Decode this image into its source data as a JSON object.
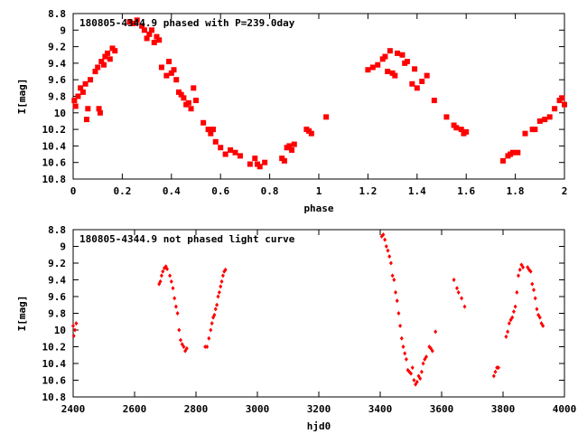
{
  "chart_data": [
    {
      "type": "scatter",
      "title": "180805-4344.9 phased with P=239.0day",
      "xlabel": "phase",
      "ylabel": "I[mag]",
      "xlim": [
        0,
        2
      ],
      "ylim": [
        10.8,
        8.8
      ],
      "y_inverted": true,
      "grid": false,
      "legend": "none",
      "marker": "square",
      "color": "#ff0000",
      "x_ticks": [
        "0",
        "0.2",
        "0.4",
        "0.6",
        "0.8",
        "1",
        "1.2",
        "1.4",
        "1.6",
        "1.8",
        "2"
      ],
      "x_tick_values": [
        0,
        0.2,
        0.4,
        0.6,
        0.8,
        1.0,
        1.2,
        1.4,
        1.6,
        1.8,
        2.0
      ],
      "y_ticks": [
        "8.8",
        "9",
        "9.2",
        "9.4",
        "9.6",
        "9.8",
        "10",
        "10.2",
        "10.4",
        "10.6",
        "10.8"
      ],
      "y_tick_values": [
        8.8,
        9.0,
        9.2,
        9.4,
        9.6,
        9.8,
        10.0,
        10.2,
        10.4,
        10.6,
        10.8
      ],
      "points": [
        [
          0.005,
          9.85
        ],
        [
          0.01,
          9.92
        ],
        [
          0.02,
          9.8
        ],
        [
          0.03,
          9.7
        ],
        [
          0.04,
          9.75
        ],
        [
          0.05,
          9.65
        ],
        [
          0.055,
          10.08
        ],
        [
          0.06,
          9.95
        ],
        [
          0.07,
          9.6
        ],
        [
          0.09,
          9.5
        ],
        [
          0.1,
          9.45
        ],
        [
          0.105,
          9.95
        ],
        [
          0.11,
          10.0
        ],
        [
          0.115,
          9.38
        ],
        [
          0.125,
          9.42
        ],
        [
          0.13,
          9.32
        ],
        [
          0.14,
          9.28
        ],
        [
          0.15,
          9.35
        ],
        [
          0.16,
          9.22
        ],
        [
          0.17,
          9.25
        ],
        [
          0.23,
          8.9
        ],
        [
          0.245,
          8.92
        ],
        [
          0.26,
          8.88
        ],
        [
          0.28,
          8.95
        ],
        [
          0.29,
          9.0
        ],
        [
          0.3,
          9.1
        ],
        [
          0.31,
          9.05
        ],
        [
          0.32,
          9.0
        ],
        [
          0.33,
          9.15
        ],
        [
          0.34,
          9.08
        ],
        [
          0.35,
          9.12
        ],
        [
          0.36,
          9.45
        ],
        [
          0.38,
          9.55
        ],
        [
          0.39,
          9.38
        ],
        [
          0.4,
          9.52
        ],
        [
          0.41,
          9.48
        ],
        [
          0.42,
          9.6
        ],
        [
          0.43,
          9.75
        ],
        [
          0.44,
          9.78
        ],
        [
          0.45,
          9.82
        ],
        [
          0.46,
          9.9
        ],
        [
          0.47,
          9.88
        ],
        [
          0.48,
          9.95
        ],
        [
          0.49,
          9.7
        ],
        [
          0.5,
          9.85
        ],
        [
          0.53,
          10.12
        ],
        [
          0.55,
          10.2
        ],
        [
          0.56,
          10.25
        ],
        [
          0.57,
          10.2
        ],
        [
          0.58,
          10.35
        ],
        [
          0.6,
          10.42
        ],
        [
          0.62,
          10.5
        ],
        [
          0.64,
          10.45
        ],
        [
          0.66,
          10.48
        ],
        [
          0.68,
          10.52
        ],
        [
          0.72,
          10.62
        ],
        [
          0.74,
          10.55
        ],
        [
          0.75,
          10.62
        ],
        [
          0.76,
          10.65
        ],
        [
          0.78,
          10.6
        ],
        [
          0.85,
          10.55
        ],
        [
          0.86,
          10.58
        ],
        [
          0.87,
          10.42
        ],
        [
          0.88,
          10.4
        ],
        [
          0.89,
          10.45
        ],
        [
          0.9,
          10.38
        ],
        [
          0.95,
          10.2
        ],
        [
          0.96,
          10.22
        ],
        [
          0.97,
          10.25
        ],
        [
          1.03,
          10.05
        ],
        [
          1.2,
          9.48
        ],
        [
          1.22,
          9.45
        ],
        [
          1.24,
          9.42
        ],
        [
          1.26,
          9.35
        ],
        [
          1.27,
          9.32
        ],
        [
          1.28,
          9.5
        ],
        [
          1.29,
          9.25
        ],
        [
          1.3,
          9.52
        ],
        [
          1.31,
          9.55
        ],
        [
          1.32,
          9.28
        ],
        [
          1.34,
          9.3
        ],
        [
          1.35,
          9.4
        ],
        [
          1.36,
          9.38
        ],
        [
          1.38,
          9.65
        ],
        [
          1.39,
          9.47
        ],
        [
          1.4,
          9.7
        ],
        [
          1.42,
          9.62
        ],
        [
          1.44,
          9.55
        ],
        [
          1.47,
          9.85
        ],
        [
          1.52,
          10.05
        ],
        [
          1.55,
          10.15
        ],
        [
          1.56,
          10.18
        ],
        [
          1.58,
          10.2
        ],
        [
          1.59,
          10.25
        ],
        [
          1.6,
          10.23
        ],
        [
          1.75,
          10.58
        ],
        [
          1.77,
          10.52
        ],
        [
          1.78,
          10.5
        ],
        [
          1.79,
          10.48
        ],
        [
          1.81,
          10.48
        ],
        [
          1.84,
          10.25
        ],
        [
          1.87,
          10.2
        ],
        [
          1.88,
          10.2
        ],
        [
          1.9,
          10.1
        ],
        [
          1.92,
          10.08
        ],
        [
          1.94,
          10.05
        ],
        [
          1.96,
          9.95
        ],
        [
          1.98,
          9.85
        ],
        [
          1.99,
          9.82
        ],
        [
          2.0,
          9.9
        ]
      ]
    },
    {
      "type": "scatter",
      "title": "180805-4344.9 not phased light curve",
      "xlabel": "hjd0",
      "ylabel": "I[mag]",
      "xlim": [
        2400,
        4000
      ],
      "ylim": [
        10.8,
        8.8
      ],
      "y_inverted": true,
      "grid": false,
      "legend": "none",
      "marker": "diamond",
      "color": "#ff0000",
      "x_ticks": [
        "2400",
        "2600",
        "2800",
        "3000",
        "3200",
        "3400",
        "3600",
        "3800",
        "4000"
      ],
      "x_tick_values": [
        2400,
        2600,
        2800,
        3000,
        3200,
        3400,
        3600,
        3800,
        4000
      ],
      "y_ticks": [
        "8.8",
        "9",
        "9.2",
        "9.4",
        "9.6",
        "9.8",
        "10",
        "10.2",
        "10.4",
        "10.6",
        "10.8"
      ],
      "y_tick_values": [
        8.8,
        9.0,
        9.2,
        9.4,
        9.6,
        9.8,
        10.0,
        10.2,
        10.4,
        10.6,
        10.8
      ],
      "points": [
        [
          2400,
          9.95
        ],
        [
          2402,
          10.07
        ],
        [
          2406,
          10.0
        ],
        [
          2410,
          9.92
        ],
        [
          2680,
          9.45
        ],
        [
          2684,
          9.42
        ],
        [
          2688,
          9.35
        ],
        [
          2692,
          9.3
        ],
        [
          2697,
          9.26
        ],
        [
          2702,
          9.24
        ],
        [
          2706,
          9.27
        ],
        [
          2715,
          9.35
        ],
        [
          2720,
          9.42
        ],
        [
          2725,
          9.5
        ],
        [
          2730,
          9.62
        ],
        [
          2735,
          9.72
        ],
        [
          2740,
          9.8
        ],
        [
          2745,
          10.0
        ],
        [
          2750,
          10.12
        ],
        [
          2755,
          10.17
        ],
        [
          2760,
          10.2
        ],
        [
          2765,
          10.25
        ],
        [
          2770,
          10.22
        ],
        [
          2830,
          10.2
        ],
        [
          2836,
          10.2
        ],
        [
          2842,
          10.1
        ],
        [
          2848,
          10.0
        ],
        [
          2852,
          9.92
        ],
        [
          2856,
          9.85
        ],
        [
          2860,
          9.82
        ],
        [
          2864,
          9.75
        ],
        [
          2868,
          9.7
        ],
        [
          2872,
          9.6
        ],
        [
          2876,
          9.55
        ],
        [
          2880,
          9.48
        ],
        [
          2884,
          9.42
        ],
        [
          2888,
          9.35
        ],
        [
          2892,
          9.3
        ],
        [
          2896,
          9.28
        ],
        [
          3405,
          8.88
        ],
        [
          3410,
          8.86
        ],
        [
          3415,
          8.92
        ],
        [
          3420,
          9.0
        ],
        [
          3425,
          9.05
        ],
        [
          3430,
          9.12
        ],
        [
          3435,
          9.2
        ],
        [
          3440,
          9.35
        ],
        [
          3445,
          9.4
        ],
        [
          3450,
          9.55
        ],
        [
          3455,
          9.65
        ],
        [
          3460,
          9.8
        ],
        [
          3465,
          9.95
        ],
        [
          3470,
          10.1
        ],
        [
          3475,
          10.2
        ],
        [
          3480,
          10.28
        ],
        [
          3485,
          10.35
        ],
        [
          3490,
          10.48
        ],
        [
          3495,
          10.5
        ],
        [
          3500,
          10.52
        ],
        [
          3505,
          10.45
        ],
        [
          3510,
          10.6
        ],
        [
          3515,
          10.65
        ],
        [
          3520,
          10.62
        ],
        [
          3525,
          10.55
        ],
        [
          3530,
          10.58
        ],
        [
          3535,
          10.5
        ],
        [
          3540,
          10.4
        ],
        [
          3545,
          10.35
        ],
        [
          3550,
          10.32
        ],
        [
          3560,
          10.2
        ],
        [
          3565,
          10.22
        ],
        [
          3570,
          10.25
        ],
        [
          3580,
          10.02
        ],
        [
          3640,
          9.4
        ],
        [
          3650,
          9.5
        ],
        [
          3655,
          9.55
        ],
        [
          3665,
          9.62
        ],
        [
          3675,
          9.72
        ],
        [
          3770,
          10.55
        ],
        [
          3775,
          10.5
        ],
        [
          3780,
          10.45
        ],
        [
          3785,
          10.45
        ],
        [
          3810,
          10.08
        ],
        [
          3815,
          10.02
        ],
        [
          3820,
          9.92
        ],
        [
          3825,
          9.88
        ],
        [
          3830,
          9.85
        ],
        [
          3835,
          9.78
        ],
        [
          3840,
          9.72
        ],
        [
          3845,
          9.55
        ],
        [
          3850,
          9.35
        ],
        [
          3855,
          9.28
        ],
        [
          3860,
          9.22
        ],
        [
          3865,
          9.25
        ],
        [
          3880,
          9.25
        ],
        [
          3885,
          9.28
        ],
        [
          3890,
          9.3
        ],
        [
          3895,
          9.45
        ],
        [
          3900,
          9.52
        ],
        [
          3905,
          9.62
        ],
        [
          3910,
          9.75
        ],
        [
          3915,
          9.82
        ],
        [
          3920,
          9.85
        ],
        [
          3925,
          9.92
        ],
        [
          3930,
          9.95
        ]
      ]
    }
  ]
}
